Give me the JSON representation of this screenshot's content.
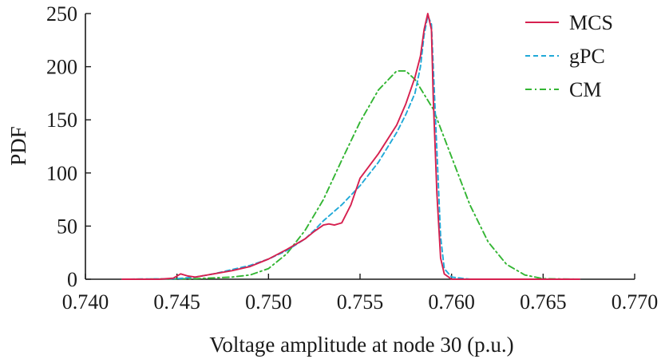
{
  "chart_data": {
    "type": "line",
    "title": "",
    "xlabel": "Voltage amplitude at node 30 (p.u.)",
    "ylabel": "PDF",
    "xlim": [
      0.74,
      0.77
    ],
    "ylim": [
      0,
      250
    ],
    "xticks": [
      "0.740",
      "0.745",
      "0.750",
      "0.755",
      "0.760",
      "0.765",
      "0.770"
    ],
    "yticks": [
      "0",
      "50",
      "100",
      "150",
      "200",
      "250"
    ],
    "grid": false,
    "legend_position": "top-right",
    "series": [
      {
        "name": "MCS",
        "color": "#d6204f",
        "style": "solid",
        "points": [
          [
            0.742,
            0
          ],
          [
            0.744,
            0
          ],
          [
            0.7448,
            1
          ],
          [
            0.7452,
            5
          ],
          [
            0.7456,
            3
          ],
          [
            0.746,
            2
          ],
          [
            0.747,
            5
          ],
          [
            0.748,
            8
          ],
          [
            0.749,
            12
          ],
          [
            0.75,
            19
          ],
          [
            0.751,
            28
          ],
          [
            0.752,
            38
          ],
          [
            0.7525,
            45
          ],
          [
            0.753,
            51
          ],
          [
            0.7533,
            52
          ],
          [
            0.7536,
            51
          ],
          [
            0.754,
            53
          ],
          [
            0.7545,
            70
          ],
          [
            0.755,
            95
          ],
          [
            0.756,
            118
          ],
          [
            0.757,
            145
          ],
          [
            0.7575,
            165
          ],
          [
            0.758,
            190
          ],
          [
            0.7583,
            210
          ],
          [
            0.7585,
            235
          ],
          [
            0.7587,
            250
          ],
          [
            0.7589,
            235
          ],
          [
            0.759,
            170
          ],
          [
            0.7592,
            80
          ],
          [
            0.7594,
            20
          ],
          [
            0.7596,
            5
          ],
          [
            0.76,
            0
          ],
          [
            0.767,
            0
          ]
        ]
      },
      {
        "name": "gPC",
        "color": "#20a9d8",
        "style": "dashed",
        "points": [
          [
            0.742,
            0
          ],
          [
            0.745,
            0.5
          ],
          [
            0.746,
            2
          ],
          [
            0.747,
            5
          ],
          [
            0.748,
            9
          ],
          [
            0.749,
            13
          ],
          [
            0.75,
            19
          ],
          [
            0.751,
            27
          ],
          [
            0.752,
            38
          ],
          [
            0.7525,
            46
          ],
          [
            0.753,
            55
          ],
          [
            0.754,
            70
          ],
          [
            0.755,
            88
          ],
          [
            0.756,
            110
          ],
          [
            0.757,
            138
          ],
          [
            0.7575,
            155
          ],
          [
            0.758,
            175
          ],
          [
            0.7583,
            200
          ],
          [
            0.7585,
            230
          ],
          [
            0.7587,
            248
          ],
          [
            0.7589,
            240
          ],
          [
            0.759,
            200
          ],
          [
            0.7592,
            120
          ],
          [
            0.7594,
            40
          ],
          [
            0.7596,
            10
          ],
          [
            0.76,
            2
          ],
          [
            0.761,
            0
          ],
          [
            0.767,
            0
          ]
        ]
      },
      {
        "name": "CM",
        "color": "#33b533",
        "style": "dashdot",
        "points": [
          [
            0.742,
            0
          ],
          [
            0.746,
            0.5
          ],
          [
            0.748,
            2
          ],
          [
            0.749,
            4
          ],
          [
            0.75,
            10
          ],
          [
            0.751,
            24
          ],
          [
            0.752,
            46
          ],
          [
            0.753,
            75
          ],
          [
            0.754,
            112
          ],
          [
            0.755,
            148
          ],
          [
            0.756,
            178
          ],
          [
            0.757,
            196
          ],
          [
            0.7575,
            196
          ],
          [
            0.758,
            188
          ],
          [
            0.759,
            160
          ],
          [
            0.76,
            115
          ],
          [
            0.761,
            70
          ],
          [
            0.762,
            35
          ],
          [
            0.763,
            14
          ],
          [
            0.764,
            4
          ],
          [
            0.765,
            0.5
          ],
          [
            0.767,
            0
          ]
        ]
      }
    ]
  }
}
